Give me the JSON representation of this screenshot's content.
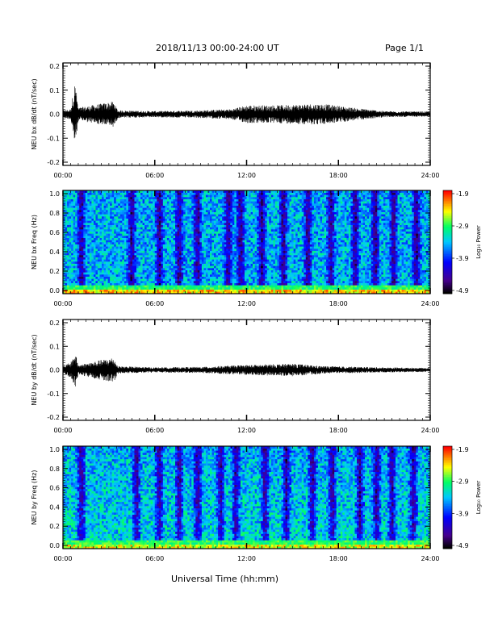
{
  "header": {
    "title": "2018/11/13  00:00-24:00 UT",
    "page": "Page 1/1"
  },
  "xlabel": "Universal Time (hh:mm)",
  "colorbar": {
    "label": "Log₁₀ Power",
    "ticks": [
      "-1.9",
      "-2.9",
      "-3.9",
      "-4.9"
    ]
  },
  "chart_data": [
    {
      "type": "line",
      "ylabel": "NEU bx dB/dt (nT/sec)",
      "xlim": [
        0,
        24
      ],
      "ylim": [
        -0.2,
        0.2
      ],
      "xticks": [
        "00:00",
        "06:00",
        "12:00",
        "18:00",
        "24:00"
      ],
      "yticks": [
        "0.2",
        "0.1",
        "0.0",
        "-0.1",
        "-0.2"
      ],
      "envelope": [
        {
          "t": 0.0,
          "amp": 0.015
        },
        {
          "t": 0.5,
          "amp": 0.02
        },
        {
          "t": 0.8,
          "amp": 0.13
        },
        {
          "t": 1.0,
          "amp": 0.025
        },
        {
          "t": 3.3,
          "amp": 0.05
        },
        {
          "t": 3.6,
          "amp": 0.015
        },
        {
          "t": 6.0,
          "amp": 0.012
        },
        {
          "t": 9.0,
          "amp": 0.015
        },
        {
          "t": 11.0,
          "amp": 0.02
        },
        {
          "t": 12.0,
          "amp": 0.035
        },
        {
          "t": 14.0,
          "amp": 0.035
        },
        {
          "t": 16.0,
          "amp": 0.04
        },
        {
          "t": 17.0,
          "amp": 0.04
        },
        {
          "t": 19.0,
          "amp": 0.025
        },
        {
          "t": 21.0,
          "amp": 0.012
        },
        {
          "t": 24.0,
          "amp": 0.01
        }
      ]
    },
    {
      "type": "heatmap",
      "ylabel": "NEU bx Freq (Hz)",
      "xlim": [
        0,
        24
      ],
      "ylim": [
        0,
        1.0
      ],
      "xticks": [
        "00:00",
        "06:00",
        "12:00",
        "18:00",
        "24:00"
      ],
      "yticks": [
        "1.0",
        "0.8",
        "0.6",
        "0.4",
        "0.2",
        "0.0"
      ],
      "color_range": [
        -4.9,
        -1.9
      ],
      "colorscale": [
        "#000000",
        "#3b0080",
        "#0000ff",
        "#00c8ff",
        "#00ff60",
        "#ffff00",
        "#ff8000",
        "#ff0000"
      ],
      "quiet_bands_hours": [
        1.2,
        4.5,
        6.3,
        7.6,
        8.8,
        10.8,
        11.6,
        13.0,
        14.4,
        16.0,
        17.5,
        19.1,
        20.4,
        21.6,
        23.1
      ]
    },
    {
      "type": "line",
      "ylabel": "NEU by dB/dt (nT/sec)",
      "xlim": [
        0,
        24
      ],
      "ylim": [
        -0.2,
        0.2
      ],
      "xticks": [
        "00:00",
        "06:00",
        "12:00",
        "18:00",
        "24:00"
      ],
      "yticks": [
        "0.2",
        "0.1",
        "0.0",
        "-0.1",
        "-0.2"
      ],
      "envelope": [
        {
          "t": 0.0,
          "amp": 0.015
        },
        {
          "t": 0.5,
          "amp": 0.03
        },
        {
          "t": 0.8,
          "amp": 0.07
        },
        {
          "t": 1.0,
          "amp": 0.02
        },
        {
          "t": 3.3,
          "amp": 0.05
        },
        {
          "t": 3.6,
          "amp": 0.015
        },
        {
          "t": 6.0,
          "amp": 0.01
        },
        {
          "t": 9.0,
          "amp": 0.012
        },
        {
          "t": 12.0,
          "amp": 0.02
        },
        {
          "t": 15.0,
          "amp": 0.025
        },
        {
          "t": 17.0,
          "amp": 0.015
        },
        {
          "t": 21.0,
          "amp": 0.01
        },
        {
          "t": 24.0,
          "amp": 0.008
        }
      ]
    },
    {
      "type": "heatmap",
      "ylabel": "NEU by Freq (Hz)",
      "xlim": [
        0,
        24
      ],
      "ylim": [
        0,
        1.0
      ],
      "xticks": [
        "00:00",
        "06:00",
        "12:00",
        "18:00",
        "24:00"
      ],
      "yticks": [
        "1.0",
        "0.8",
        "0.6",
        "0.4",
        "0.2",
        "0.0"
      ],
      "color_range": [
        -4.9,
        -1.9
      ],
      "colorscale": [
        "#000000",
        "#3b0080",
        "#0000ff",
        "#00c8ff",
        "#00ff60",
        "#ffff00",
        "#ff8000",
        "#ff0000"
      ],
      "quiet_bands_hours": [
        1.2,
        4.8,
        6.3,
        7.6,
        8.8,
        10.3,
        11.3,
        13.2,
        14.6,
        16.3,
        17.6,
        19.4,
        20.5,
        21.5,
        22.9
      ]
    }
  ]
}
